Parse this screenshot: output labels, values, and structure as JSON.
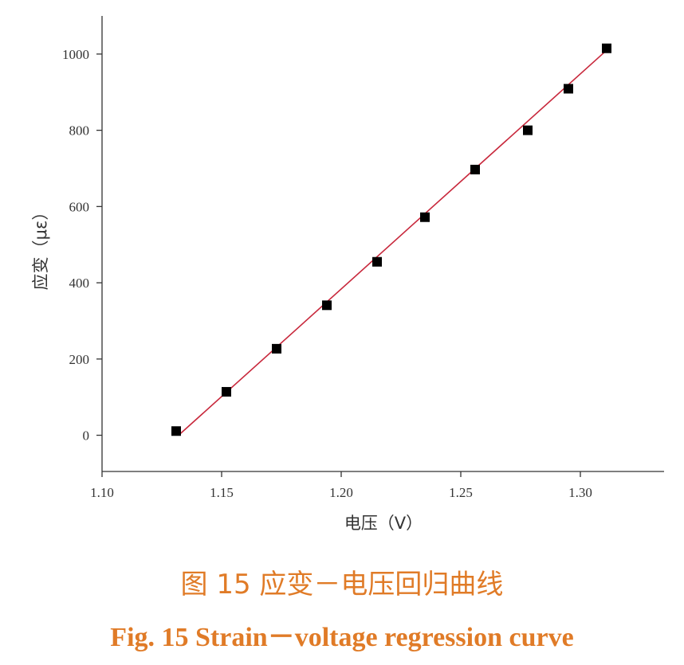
{
  "chart_data": {
    "type": "scatter",
    "xlabel": "电压（V）",
    "ylabel": "应变（με）",
    "xlim": [
      1.1,
      1.335
    ],
    "ylim": [
      -95,
      1100
    ],
    "xticks": [
      1.1,
      1.15,
      1.2,
      1.25,
      1.3
    ],
    "xtick_labels": [
      "1.10",
      "1.15",
      "1.20",
      "1.25",
      "1.30"
    ],
    "yticks": [
      0,
      200,
      400,
      600,
      800,
      1000
    ],
    "ytick_labels": [
      "0",
      "200",
      "400",
      "600",
      "800",
      "1000"
    ],
    "series": [
      {
        "x": [
          1.131,
          1.152,
          1.173,
          1.194,
          1.215,
          1.235,
          1.256,
          1.278,
          1.295,
          1.311
        ],
        "y": [
          11,
          114,
          227,
          341,
          455,
          572,
          697,
          800,
          909,
          1015
        ]
      }
    ],
    "regression_line": {
      "x": [
        1.132,
        1.311
      ],
      "y": [
        0,
        1010
      ]
    },
    "grid": false,
    "legend": "none"
  },
  "colors": {
    "line": "#c8283c",
    "marker": "#000000",
    "caption": "#e07b27"
  },
  "caption": {
    "cn": "图 15    应变－电压回归曲线",
    "en": "Fig. 15    Strain－voltage regression curve"
  }
}
